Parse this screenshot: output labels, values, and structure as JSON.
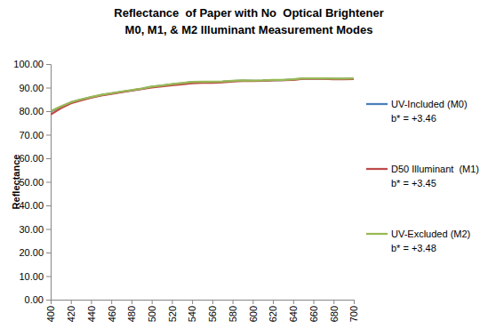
{
  "chart_data": {
    "type": "line",
    "title": "Reflectance  of Paper with No  Optical Brightener",
    "subtitle": "M0, M1, & M2 Illuminant Measurement Modes",
    "y_label": "Reflectance",
    "x": [
      400,
      410,
      420,
      430,
      440,
      450,
      460,
      470,
      480,
      490,
      500,
      510,
      520,
      530,
      540,
      550,
      560,
      570,
      580,
      590,
      600,
      610,
      620,
      630,
      640,
      650,
      660,
      670,
      680,
      690,
      700
    ],
    "series": [
      {
        "name": "UV-Included (M0)",
        "color": "#4a7ebb",
        "values": [
          79.8,
          81.9,
          83.7,
          84.9,
          85.9,
          86.8,
          87.5,
          88.2,
          88.8,
          89.5,
          90.3,
          90.8,
          91.4,
          91.8,
          92.3,
          92.4,
          92.4,
          92.5,
          92.8,
          93.0,
          92.9,
          93.0,
          93.2,
          93.2,
          93.4,
          93.8,
          93.8,
          93.8,
          93.7,
          93.7,
          93.8
        ]
      },
      {
        "name": "D50 Illuminant  (M1)",
        "color": "#be4b48",
        "values": [
          78.6,
          81.2,
          83.3,
          84.6,
          85.7,
          86.6,
          87.3,
          88.1,
          88.7,
          89.4,
          90.0,
          90.5,
          91.0,
          91.4,
          91.8,
          92.0,
          92.0,
          92.2,
          92.6,
          92.8,
          92.8,
          92.9,
          93.1,
          93.2,
          93.3,
          93.7,
          93.8,
          93.7,
          93.5,
          93.5,
          93.6
        ]
      },
      {
        "name": "UV-Excluded (M2)",
        "color": "#98b954",
        "values": [
          80.0,
          82.0,
          83.8,
          85.0,
          86.0,
          86.9,
          87.6,
          88.3,
          88.9,
          89.6,
          90.4,
          90.9,
          91.5,
          91.9,
          92.4,
          92.5,
          92.5,
          92.6,
          92.9,
          93.1,
          93.0,
          93.1,
          93.3,
          93.3,
          93.5,
          93.9,
          93.9,
          93.9,
          93.8,
          93.8,
          93.9
        ]
      }
    ],
    "annotations": [
      "b* = +3.46",
      "b* = +3.45",
      "b* = +3.48"
    ],
    "xlim": [
      400,
      700
    ],
    "xticks": [
      400,
      420,
      440,
      460,
      480,
      500,
      520,
      540,
      560,
      580,
      600,
      620,
      640,
      660,
      680,
      700
    ],
    "ylim": [
      0,
      100
    ],
    "yticks": [
      {
        "value": 0,
        "label": "0.00"
      },
      {
        "value": 10,
        "label": "10.00"
      },
      {
        "value": 20,
        "label": "20.00"
      },
      {
        "value": 30,
        "label": "30.00"
      },
      {
        "value": 40,
        "label": "40.00"
      },
      {
        "value": 50,
        "label": "50.00"
      },
      {
        "value": 60,
        "label": "60.00"
      },
      {
        "value": 70,
        "label": "70.00"
      },
      {
        "value": 80,
        "label": "80.00"
      },
      {
        "value": 90,
        "label": "90.00"
      },
      {
        "value": 100,
        "label": "100.00"
      }
    ],
    "grid": false,
    "legend": "right"
  }
}
